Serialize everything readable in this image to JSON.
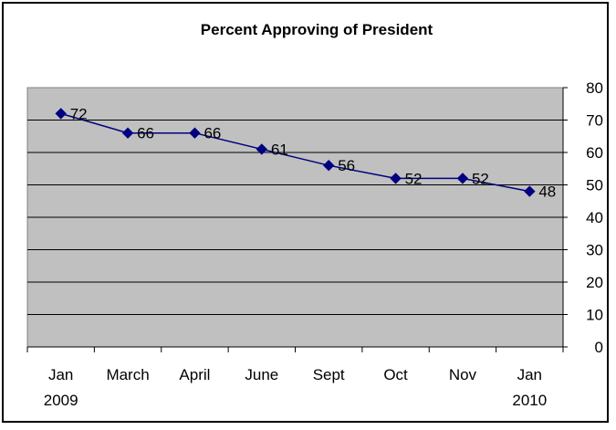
{
  "chart_data": {
    "type": "line",
    "title": "Percent Approving of President",
    "categories": [
      [
        "Jan",
        "2009"
      ],
      [
        "March"
      ],
      [
        "April"
      ],
      [
        "June"
      ],
      [
        "Sept"
      ],
      [
        "Oct"
      ],
      [
        "Nov"
      ],
      [
        "Jan",
        "2010"
      ]
    ],
    "series": [
      {
        "values": [
          72,
          66,
          66,
          61,
          56,
          52,
          52,
          48
        ],
        "color": "#000080"
      }
    ],
    "yaxis": {
      "min": 0,
      "max": 80,
      "step": 10,
      "position": "right"
    },
    "plot_background": "#c0c0c0",
    "grid": true,
    "legend": "none",
    "marker": "diamond"
  }
}
